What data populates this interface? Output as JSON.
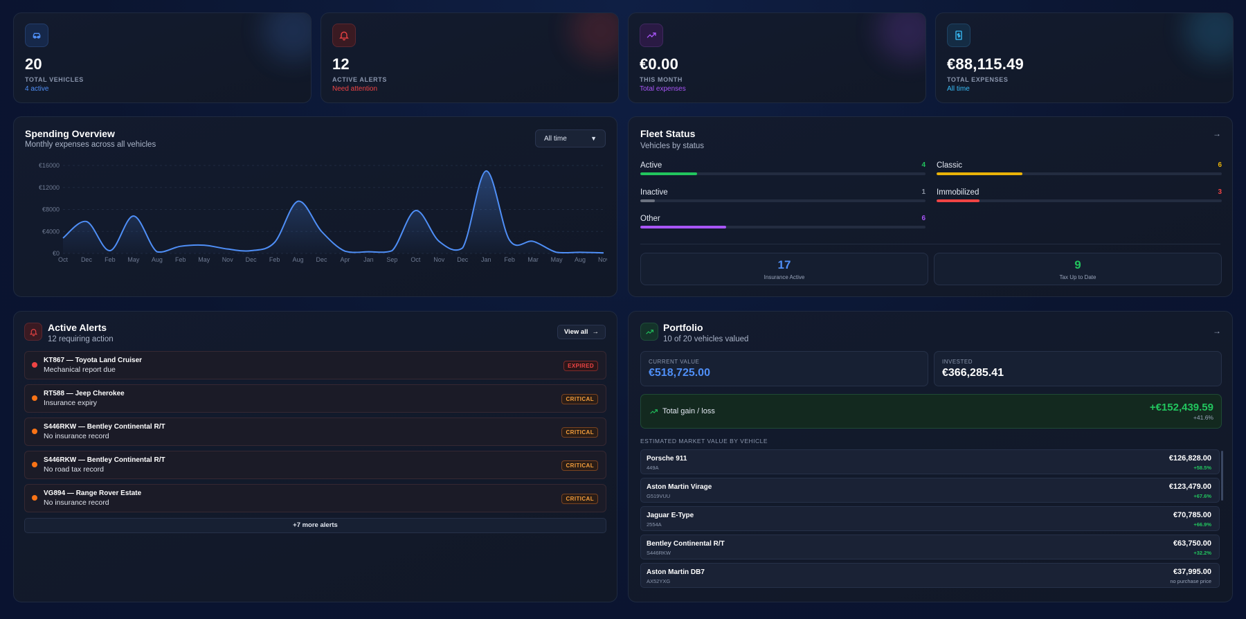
{
  "stats": [
    {
      "icon": "car-icon",
      "value": "20",
      "label": "TOTAL VEHICLES",
      "sub": "4 active",
      "accent": "#4f8ff7"
    },
    {
      "icon": "bell-icon",
      "value": "12",
      "label": "ACTIVE ALERTS",
      "sub": "Need attention",
      "accent": "#ef4444"
    },
    {
      "icon": "trend-up-icon",
      "value": "€0.00",
      "label": "THIS MONTH",
      "sub": "Total expenses",
      "accent": "#a855f7"
    },
    {
      "icon": "receipt-icon",
      "value": "€88,115.49",
      "label": "TOTAL EXPENSES",
      "sub": "All time",
      "accent": "#38bdf8"
    }
  ],
  "spending": {
    "title": "Spending Overview",
    "subtitle": "Monthly expenses across all vehicles",
    "filter_value": "All time"
  },
  "chart_data": {
    "type": "area",
    "title": "Spending Overview",
    "categories": [
      "Oct",
      "Dec",
      "Feb",
      "May",
      "Aug",
      "Feb",
      "May",
      "Nov",
      "Dec",
      "Feb",
      "Aug",
      "Dec",
      "Apr",
      "Jan",
      "Sep",
      "Oct",
      "Nov",
      "Dec",
      "Jan",
      "Feb",
      "Mar",
      "May",
      "Aug",
      "Nov"
    ],
    "values": [
      2800,
      5800,
      500,
      6800,
      300,
      1300,
      1500,
      800,
      500,
      2000,
      9500,
      4000,
      400,
      300,
      500,
      7800,
      2200,
      1000,
      15000,
      2400,
      2200,
      200,
      200,
      100
    ],
    "y_ticks": [
      "€0",
      "€4000",
      "€8000",
      "€12000",
      "€16000"
    ],
    "ylim": [
      0,
      16000
    ],
    "grid": true,
    "color": "#4f8ff7"
  },
  "fleet": {
    "title": "Fleet Status",
    "subtitle": "Vehicles by status",
    "rows": [
      {
        "name": "Active",
        "count": "4",
        "fraction": 0.2,
        "color": "#22c55e"
      },
      {
        "name": "Classic",
        "count": "6",
        "fraction": 0.3,
        "color": "#eab308"
      },
      {
        "name": "Inactive",
        "count": "1",
        "fraction": 0.05,
        "color": "#6b7280"
      },
      {
        "name": "Immobilized",
        "count": "3",
        "fraction": 0.15,
        "color": "#ef4444"
      },
      {
        "name": "Other",
        "count": "6",
        "fraction": 0.3,
        "color": "#a855f7"
      }
    ],
    "insurance": {
      "value": "17",
      "label": "Insurance Active"
    },
    "tax": {
      "value": "9",
      "label": "Tax Up to Date"
    }
  },
  "alerts": {
    "title": "Active Alerts",
    "subtitle": "12 requiring action",
    "view_all": "View all",
    "items": [
      {
        "title": "KT867 — Toyota Land Cruiser",
        "desc": "Mechanical report due",
        "badge": "EXPIRED",
        "kind": "expired"
      },
      {
        "title": "RT588 — Jeep Cherokee",
        "desc": "Insurance expiry",
        "badge": "CRITICAL",
        "kind": "critical"
      },
      {
        "title": "S446RKW — Bentley Continental R/T",
        "desc": "No insurance record",
        "badge": "CRITICAL",
        "kind": "critical"
      },
      {
        "title": "S446RKW — Bentley Continental R/T",
        "desc": "No road tax record",
        "badge": "CRITICAL",
        "kind": "critical"
      },
      {
        "title": "VG894 — Range Rover Estate",
        "desc": "No insurance record",
        "badge": "CRITICAL",
        "kind": "critical"
      }
    ],
    "more": "+7 more alerts"
  },
  "portfolio": {
    "title": "Portfolio",
    "subtitle": "10 of 20 vehicles valued",
    "current_label": "CURRENT VALUE",
    "current_value": "€518,725.00",
    "invested_label": "INVESTED",
    "invested_value": "€366,285.41",
    "gain_label": "Total gain / loss",
    "gain_value": "+€152,439.59",
    "gain_pct": "+41.6%",
    "list_heading": "ESTIMATED MARKET VALUE BY VEHICLE",
    "vehicles": [
      {
        "name": "Porsche 911",
        "plate": "449A",
        "value": "€126,828.00",
        "gain": "+58.5%"
      },
      {
        "name": "Aston Martin Virage",
        "plate": "G519VUU",
        "value": "€123,479.00",
        "gain": "+67.6%"
      },
      {
        "name": "Jaguar E-Type",
        "plate": "2554A",
        "value": "€70,785.00",
        "gain": "+66.9%"
      },
      {
        "name": "Bentley Continental R/T",
        "plate": "S446RKW",
        "value": "€63,750.00",
        "gain": "+32.2%"
      },
      {
        "name": "Aston Martin DB7",
        "plate": "AX52YXG",
        "value": "€37,995.00",
        "gain": "no purchase price"
      }
    ]
  }
}
